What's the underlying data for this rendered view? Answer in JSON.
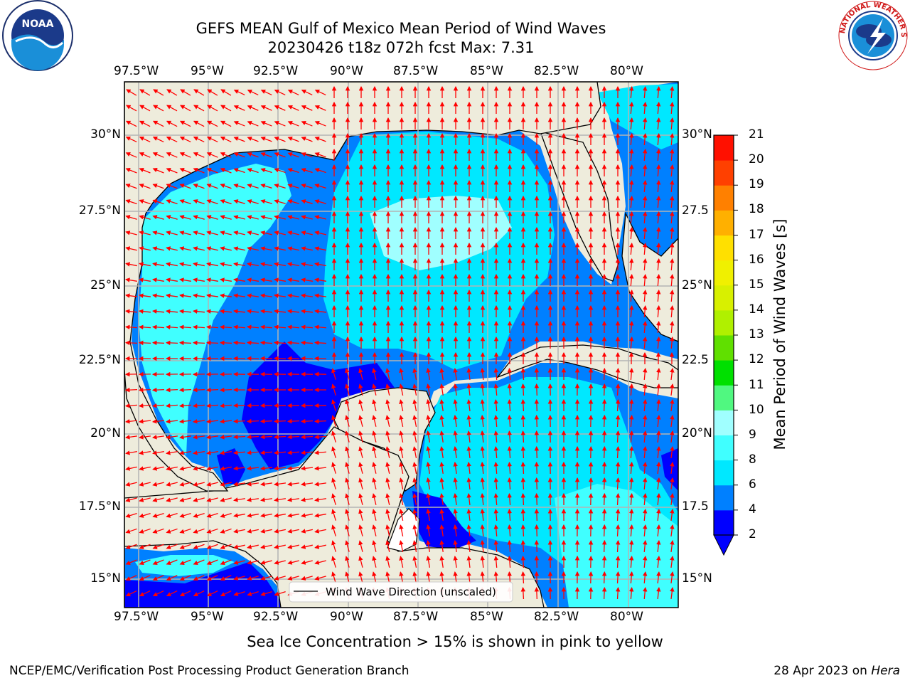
{
  "header": {
    "title_line1": "GEFS MEAN Gulf of Mexico Mean Period of Wind Waves",
    "title_line2": "20230426 t18z 072h fcst   Max: 7.31"
  },
  "logos": {
    "noaa_text": "NOAA",
    "noaa_ring": "NATIONAL OCEANIC AND ATMOSPHERIC ADMINISTRATION · U.S. DEPARTMENT OF COMMERCE",
    "nws_ring": "NATIONAL WEATHER SERVICE"
  },
  "map": {
    "lon_labels": [
      "97.5°W",
      "95°W",
      "92.5°W",
      "90°W",
      "87.5°W",
      "85°W",
      "82.5°W",
      "80°W"
    ],
    "lat_labels_left": [
      "30°N",
      "27.5°N",
      "25°N",
      "22.5°N",
      "20°N",
      "17.5°N",
      "15°N"
    ],
    "lat_labels_right": [
      "30°N",
      "27.5",
      "25°N",
      "22.5",
      "20°N",
      "17.5",
      "15°N"
    ],
    "legend_label": "Wind Wave Direction (unscaled)",
    "colors": {
      "land": "#eeecdc",
      "arrow": "#ff0000",
      "grid": "#b4b4b4"
    }
  },
  "colorbar": {
    "label": "Mean Period of Wind Waves [s]",
    "tick_labels": [
      "2",
      "4",
      "6",
      "8",
      "9",
      "10",
      "11",
      "12",
      "13",
      "14",
      "15",
      "16",
      "17",
      "18",
      "19",
      "20",
      "21"
    ],
    "colors": [
      "#0000ff",
      "#0080ff",
      "#00e8ff",
      "#40ffff",
      "#a0ffff",
      "#50f880",
      "#00e000",
      "#60e000",
      "#b0f000",
      "#d8f000",
      "#f0f000",
      "#ffe000",
      "#ffb000",
      "#ff8000",
      "#ff4000",
      "#ff1000"
    ],
    "extend_color": "#0000ff"
  },
  "footer": {
    "note": "Sea Ice Concentration > 15% is shown in pink to yellow",
    "branch": "NCEP/EMC/Verification Post Processing Product Generation Branch",
    "date": "28 Apr 2023 on",
    "system": "Hera"
  }
}
